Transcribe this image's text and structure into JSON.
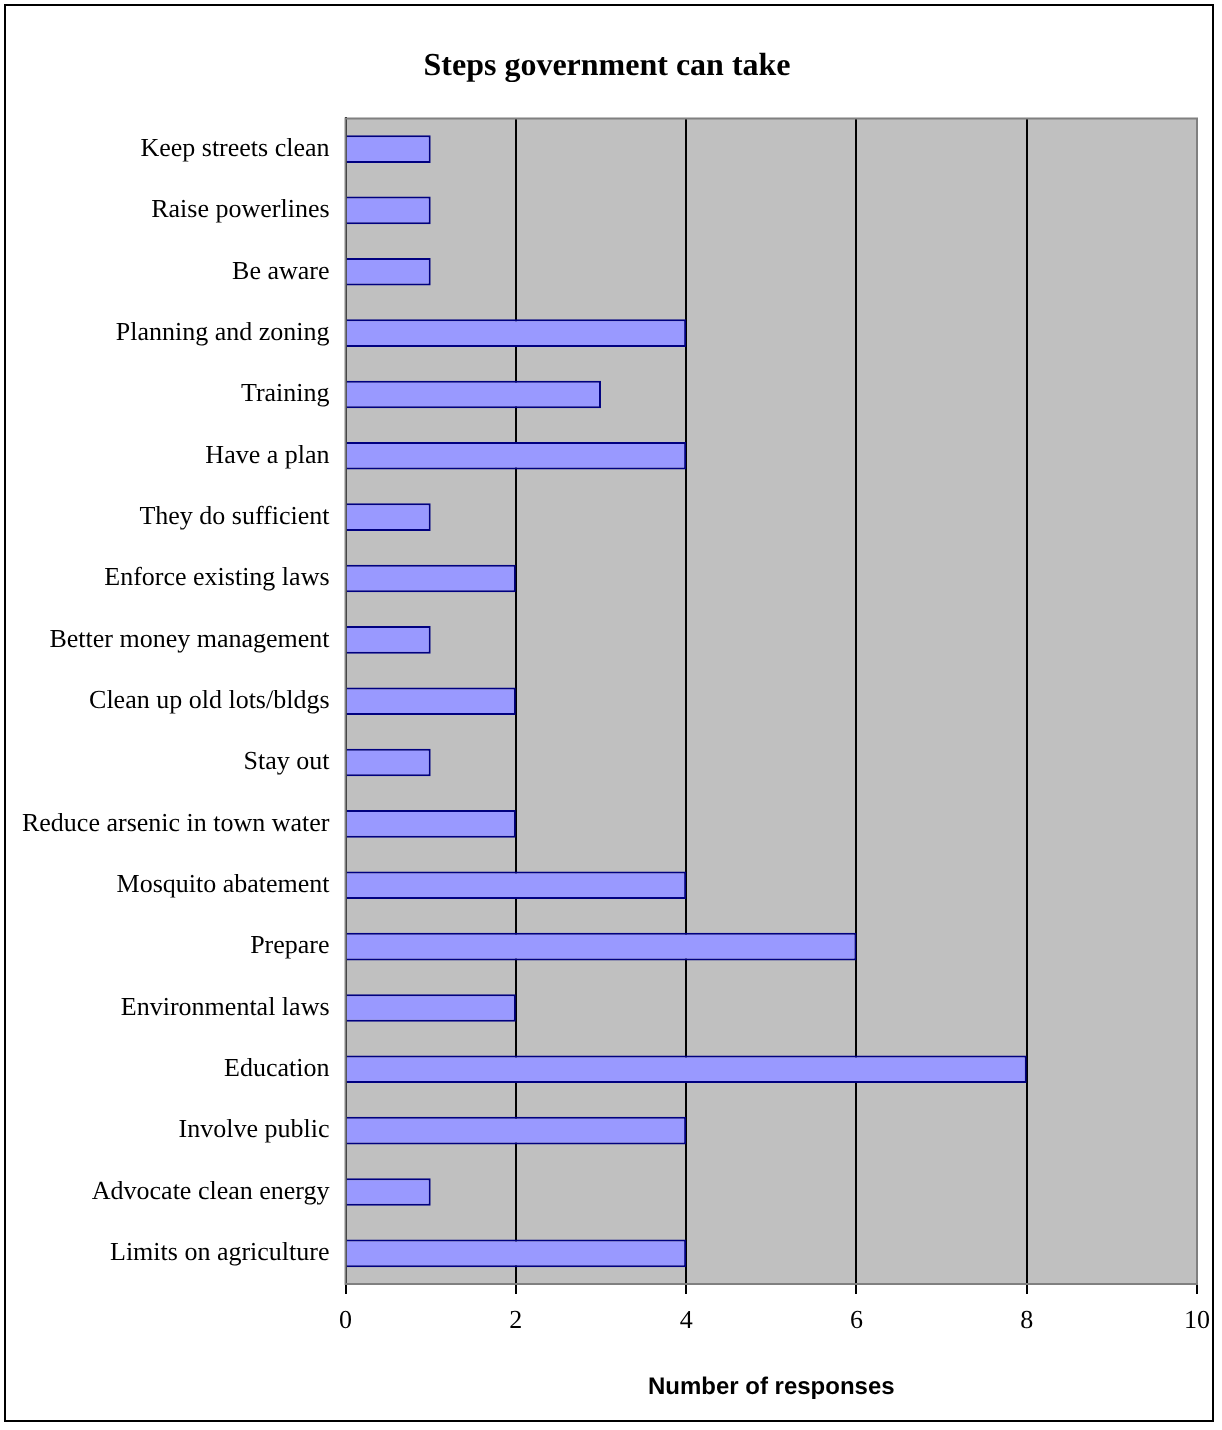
{
  "chart_data": {
    "type": "bar",
    "orientation": "horizontal",
    "title": "Steps government can take",
    "xlabel": "Number of responses",
    "categories": [
      "Keep streets clean",
      "Raise powerlines",
      "Be aware",
      "Planning and zoning",
      "Training",
      "Have a plan",
      "They do sufficient",
      "Enforce existing laws",
      "Better money management",
      "Clean up old lots/bldgs",
      "Stay out",
      "Reduce arsenic in town water",
      "Mosquito abatement",
      "Prepare",
      "Environmental laws",
      "Education",
      "Involve public",
      "Advocate clean energy",
      "Limits on agriculture"
    ],
    "values": [
      1,
      1,
      1,
      4,
      3,
      4,
      1,
      2,
      1,
      2,
      1,
      2,
      4,
      6,
      2,
      8,
      4,
      1,
      4
    ],
    "color": "#9999ff",
    "xlim": [
      0,
      10
    ],
    "xticks": [
      0,
      2,
      4,
      6,
      8,
      10
    ],
    "grid": "x",
    "legend": false
  }
}
